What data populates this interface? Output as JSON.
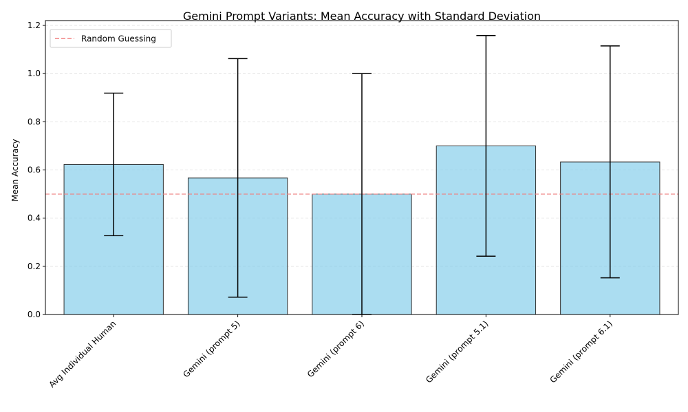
{
  "chart_data": {
    "type": "bar",
    "title": "Gemini Prompt Variants: Mean Accuracy with Standard Deviation",
    "xlabel": "",
    "ylabel": "Mean Accuracy",
    "categories": [
      "Avg Individual Human",
      "Gemini (prompt 5)",
      "Gemini (prompt 6)",
      "Gemini (prompt 5.1)",
      "Gemini (prompt 6.1)"
    ],
    "values": [
      0.623,
      0.567,
      0.5,
      0.7,
      0.633
    ],
    "error_lower": [
      0.327,
      0.072,
      0.0,
      0.242,
      0.152
    ],
    "error_upper": [
      0.919,
      1.062,
      1.0,
      1.158,
      1.115
    ],
    "ylim": [
      0,
      1.22
    ],
    "yticks": [
      0.0,
      0.2,
      0.4,
      0.6,
      0.8,
      1.0,
      1.2
    ],
    "ytick_labels": [
      "0.0",
      "0.2",
      "0.4",
      "0.6",
      "0.8",
      "1.0",
      "1.2"
    ],
    "reference_line": {
      "y": 0.5,
      "label": "Random Guessing",
      "color": "#f08080",
      "style": "dashed"
    },
    "grid": {
      "y": true,
      "x": false
    },
    "legend": {
      "position": "top-left"
    },
    "colors": {
      "bar_fill": "#87ceeb",
      "bar_edge": "#333333",
      "error_bar": "#000000"
    }
  }
}
